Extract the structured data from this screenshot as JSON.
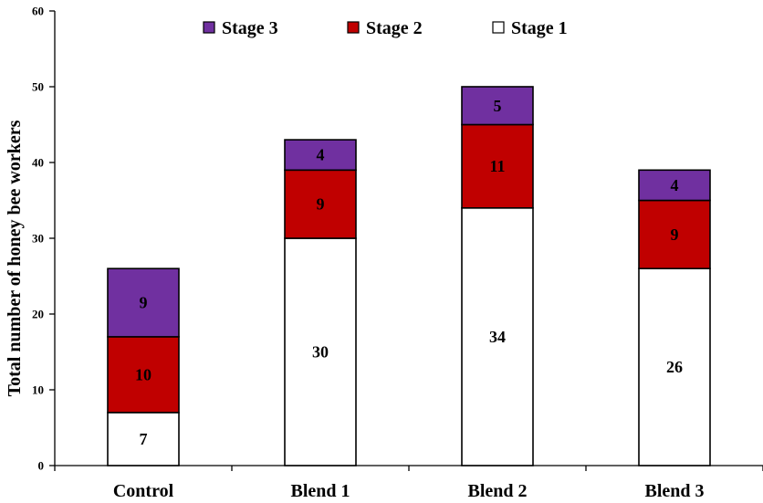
{
  "chart_data": {
    "type": "bar",
    "stacked": true,
    "title": "",
    "xlabel": "",
    "ylabel": "Total number of honey bee workers",
    "ylim": [
      0,
      60
    ],
    "yticks": [
      "0",
      "10",
      "20",
      "30",
      "40",
      "50",
      "60"
    ],
    "categories": [
      "Control",
      "Blend 1",
      "Blend 2",
      "Blend 3"
    ],
    "series": [
      {
        "name": "Stage 1",
        "values": [
          7,
          30,
          34,
          26
        ],
        "labels": [
          "7",
          "30",
          "34",
          "26"
        ],
        "color": "#ffffff"
      },
      {
        "name": "Stage 2",
        "values": [
          10,
          9,
          11,
          9
        ],
        "labels": [
          "10",
          "9",
          "11",
          "9"
        ],
        "color": "#c00000"
      },
      {
        "name": "Stage 3",
        "values": [
          9,
          4,
          5,
          4
        ],
        "labels": [
          "9",
          "4",
          "5",
          "4"
        ],
        "color": "#7030a0"
      }
    ],
    "legend": {
      "placement": "top",
      "order": [
        "Stage 3",
        "Stage 2",
        "Stage 1"
      ]
    },
    "grid": false
  }
}
